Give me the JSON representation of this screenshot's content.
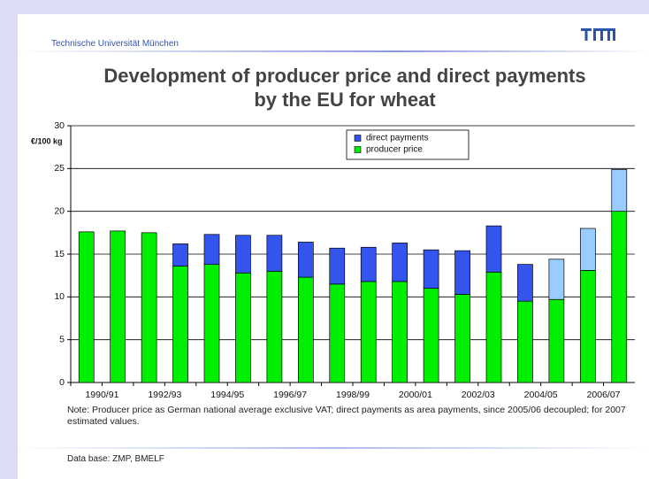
{
  "header": {
    "institution": "Technische Universität München"
  },
  "chart_data": {
    "type": "stacked_bar",
    "title": "Development of producer price and direct payments by the EU for wheat",
    "y_label": "€/100 kg",
    "categories": [
      "1990/91",
      null,
      "1992/93",
      null,
      "1994/95",
      null,
      "1996/97",
      null,
      "1998/99",
      null,
      "2000/01",
      null,
      "2002/03",
      null,
      "2004/05",
      null,
      "2006/07",
      null
    ],
    "series": [
      {
        "name": "producer price",
        "color": "#00ee00",
        "values": [
          17.6,
          17.7,
          17.5,
          13.6,
          13.8,
          12.8,
          13.0,
          12.3,
          11.5,
          11.8,
          11.8,
          11.0,
          10.3,
          12.9,
          9.5,
          9.7,
          13.1,
          20.0
        ]
      },
      {
        "name": "direct payments",
        "color": "#3355ee",
        "values": [
          null,
          null,
          null,
          2.6,
          3.5,
          4.4,
          4.2,
          4.1,
          4.2,
          4.0,
          4.5,
          4.5,
          5.1,
          5.4,
          4.3,
          4.7,
          4.9,
          4.9
        ],
        "colors": [
          "#3355ee",
          "#3355ee",
          "#3355ee",
          "#3355ee",
          "#3355ee",
          "#3355ee",
          "#3355ee",
          "#3355ee",
          "#3355ee",
          "#3355ee",
          "#3355ee",
          "#3355ee",
          "#3355ee",
          "#3355ee",
          "#3355ee",
          "#99ccff",
          "#99ccff",
          "#99ccff"
        ]
      }
    ],
    "ylim": [
      0,
      30
    ],
    "yticks": [
      0,
      5,
      10,
      15,
      20,
      25,
      30
    ],
    "grid": true,
    "legend": "top",
    "note": "Note: Producer price as German national average exclusive VAT; direct payments as area payments, since 2005/06 decoupled; for 2007 estimated values.",
    "source": "Data base: ZMP, BMELF"
  }
}
